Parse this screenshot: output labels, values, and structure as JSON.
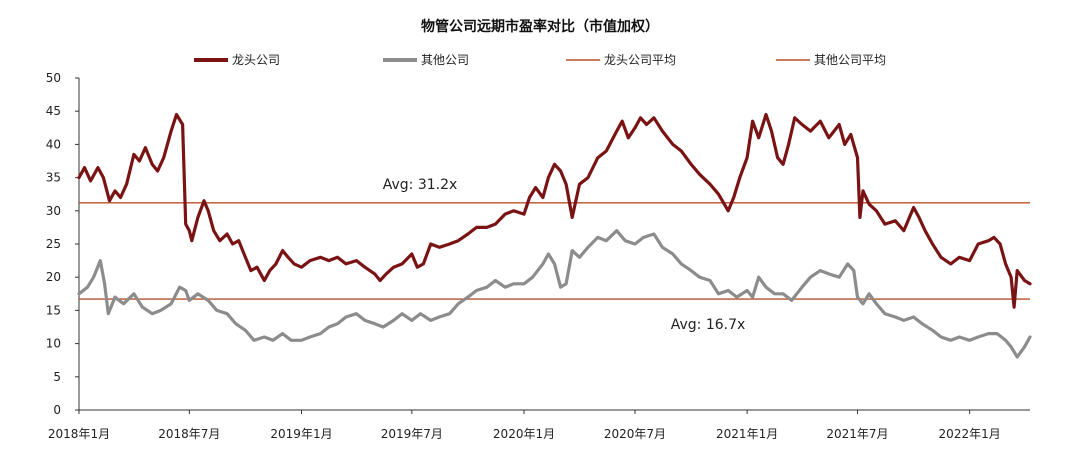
{
  "chart_data": {
    "type": "line",
    "title": "物管公司远期市盈率对比（市值加权）",
    "y_range": [
      0,
      50
    ],
    "y_ticks": [
      0,
      5,
      10,
      15,
      20,
      25,
      30,
      35,
      40,
      45,
      50
    ],
    "x_range": [
      "2018-01-01",
      "2022-04-10"
    ],
    "x_ticks": [
      {
        "date": "2018-01-01",
        "label": "2018年1月"
      },
      {
        "date": "2018-07-01",
        "label": "2018年7月"
      },
      {
        "date": "2019-01-01",
        "label": "2019年1月"
      },
      {
        "date": "2019-07-01",
        "label": "2019年7月"
      },
      {
        "date": "2020-01-01",
        "label": "2020年1月"
      },
      {
        "date": "2020-07-01",
        "label": "2020年7月"
      },
      {
        "date": "2021-01-01",
        "label": "2021年1月"
      },
      {
        "date": "2021-07-01",
        "label": "2021年7月"
      },
      {
        "date": "2022-01-01",
        "label": "2022年1月"
      }
    ],
    "grid": false,
    "legend_position": "top",
    "series": [
      {
        "name": "龙头公司",
        "color": "#7a1414",
        "points": [
          [
            "2018-01-01",
            35
          ],
          [
            "2018-01-10",
            36.5
          ],
          [
            "2018-01-20",
            34.5
          ],
          [
            "2018-02-01",
            36.5
          ],
          [
            "2018-02-10",
            35
          ],
          [
            "2018-02-20",
            31.5
          ],
          [
            "2018-03-01",
            33
          ],
          [
            "2018-03-10",
            32
          ],
          [
            "2018-03-20",
            34
          ],
          [
            "2018-04-01",
            38.5
          ],
          [
            "2018-04-10",
            37.5
          ],
          [
            "2018-04-20",
            39.5
          ],
          [
            "2018-05-01",
            37
          ],
          [
            "2018-05-10",
            36
          ],
          [
            "2018-05-20",
            38
          ],
          [
            "2018-06-01",
            42
          ],
          [
            "2018-06-10",
            44.5
          ],
          [
            "2018-06-20",
            43
          ],
          [
            "2018-06-25",
            28
          ],
          [
            "2018-07-01",
            27
          ],
          [
            "2018-07-05",
            25.5
          ],
          [
            "2018-07-15",
            29
          ],
          [
            "2018-07-25",
            31.5
          ],
          [
            "2018-08-01",
            30
          ],
          [
            "2018-08-10",
            27
          ],
          [
            "2018-08-20",
            25.5
          ],
          [
            "2018-09-01",
            26.5
          ],
          [
            "2018-09-10",
            25
          ],
          [
            "2018-09-20",
            25.5
          ],
          [
            "2018-10-01",
            23
          ],
          [
            "2018-10-10",
            21
          ],
          [
            "2018-10-20",
            21.5
          ],
          [
            "2018-11-01",
            19.5
          ],
          [
            "2018-11-10",
            21
          ],
          [
            "2018-11-20",
            22
          ],
          [
            "2018-12-01",
            24
          ],
          [
            "2018-12-10",
            23
          ],
          [
            "2018-12-20",
            22
          ],
          [
            "2019-01-01",
            21.5
          ],
          [
            "2019-01-15",
            22.5
          ],
          [
            "2019-02-01",
            23
          ],
          [
            "2019-02-15",
            22.5
          ],
          [
            "2019-03-01",
            23
          ],
          [
            "2019-03-15",
            22
          ],
          [
            "2019-04-01",
            22.5
          ],
          [
            "2019-04-15",
            21.5
          ],
          [
            "2019-05-01",
            20.5
          ],
          [
            "2019-05-10",
            19.5
          ],
          [
            "2019-05-20",
            20.5
          ],
          [
            "2019-06-01",
            21.5
          ],
          [
            "2019-06-15",
            22
          ],
          [
            "2019-07-01",
            23.5
          ],
          [
            "2019-07-10",
            21.5
          ],
          [
            "2019-07-20",
            22
          ],
          [
            "2019-08-01",
            25
          ],
          [
            "2019-08-15",
            24.5
          ],
          [
            "2019-09-01",
            25
          ],
          [
            "2019-09-15",
            25.5
          ],
          [
            "2019-10-01",
            26.5
          ],
          [
            "2019-10-15",
            27.5
          ],
          [
            "2019-11-01",
            27.5
          ],
          [
            "2019-11-15",
            28
          ],
          [
            "2019-12-01",
            29.5
          ],
          [
            "2019-12-15",
            30
          ],
          [
            "2020-01-01",
            29.5
          ],
          [
            "2020-01-10",
            32
          ],
          [
            "2020-01-20",
            33.5
          ],
          [
            "2020-02-01",
            32
          ],
          [
            "2020-02-10",
            35
          ],
          [
            "2020-02-20",
            37
          ],
          [
            "2020-03-01",
            36
          ],
          [
            "2020-03-10",
            34
          ],
          [
            "2020-03-20",
            29
          ],
          [
            "2020-04-01",
            34
          ],
          [
            "2020-04-15",
            35
          ],
          [
            "2020-05-01",
            38
          ],
          [
            "2020-05-15",
            39
          ],
          [
            "2020-06-01",
            42
          ],
          [
            "2020-06-10",
            43.5
          ],
          [
            "2020-06-20",
            41
          ],
          [
            "2020-07-01",
            42.5
          ],
          [
            "2020-07-10",
            44
          ],
          [
            "2020-07-20",
            43
          ],
          [
            "2020-08-01",
            44
          ],
          [
            "2020-08-15",
            42
          ],
          [
            "2020-09-01",
            40
          ],
          [
            "2020-09-15",
            39
          ],
          [
            "2020-10-01",
            37
          ],
          [
            "2020-10-15",
            35.5
          ],
          [
            "2020-11-01",
            34
          ],
          [
            "2020-11-15",
            32.5
          ],
          [
            "2020-12-01",
            30
          ],
          [
            "2020-12-10",
            32
          ],
          [
            "2020-12-20",
            35
          ],
          [
            "2021-01-01",
            38
          ],
          [
            "2021-01-10",
            43.5
          ],
          [
            "2021-01-20",
            41
          ],
          [
            "2021-02-01",
            44.5
          ],
          [
            "2021-02-10",
            42
          ],
          [
            "2021-02-20",
            38
          ],
          [
            "2021-03-01",
            37
          ],
          [
            "2021-03-10",
            40
          ],
          [
            "2021-03-20",
            44
          ],
          [
            "2021-04-01",
            43
          ],
          [
            "2021-04-15",
            42
          ],
          [
            "2021-05-01",
            43.5
          ],
          [
            "2021-05-15",
            41
          ],
          [
            "2021-06-01",
            43
          ],
          [
            "2021-06-10",
            40
          ],
          [
            "2021-06-20",
            41.5
          ],
          [
            "2021-07-01",
            38
          ],
          [
            "2021-07-05",
            29
          ],
          [
            "2021-07-10",
            33
          ],
          [
            "2021-07-20",
            31
          ],
          [
            "2021-08-01",
            30
          ],
          [
            "2021-08-15",
            28
          ],
          [
            "2021-09-01",
            28.5
          ],
          [
            "2021-09-15",
            27
          ],
          [
            "2021-10-01",
            30.5
          ],
          [
            "2021-10-10",
            29
          ],
          [
            "2021-10-20",
            27
          ],
          [
            "2021-11-01",
            25
          ],
          [
            "2021-11-15",
            23
          ],
          [
            "2021-12-01",
            22
          ],
          [
            "2021-12-15",
            23
          ],
          [
            "2022-01-01",
            22.5
          ],
          [
            "2022-01-15",
            25
          ],
          [
            "2022-02-01",
            25.5
          ],
          [
            "2022-02-10",
            26
          ],
          [
            "2022-02-20",
            25
          ],
          [
            "2022-03-01",
            22
          ],
          [
            "2022-03-10",
            20
          ],
          [
            "2022-03-15",
            15.5
          ],
          [
            "2022-03-20",
            21
          ],
          [
            "2022-04-01",
            19.5
          ],
          [
            "2022-04-10",
            19
          ]
        ]
      },
      {
        "name": "其他公司",
        "color": "#8c8c8c",
        "points": [
          [
            "2018-01-01",
            17.5
          ],
          [
            "2018-01-15",
            18.5
          ],
          [
            "2018-01-25",
            20
          ],
          [
            "2018-02-05",
            22.5
          ],
          [
            "2018-02-12",
            19
          ],
          [
            "2018-02-18",
            14.5
          ],
          [
            "2018-03-01",
            17
          ],
          [
            "2018-03-15",
            16
          ],
          [
            "2018-04-01",
            17.5
          ],
          [
            "2018-04-15",
            15.5
          ],
          [
            "2018-05-01",
            14.5
          ],
          [
            "2018-05-15",
            15
          ],
          [
            "2018-06-01",
            16
          ],
          [
            "2018-06-15",
            18.5
          ],
          [
            "2018-06-25",
            18
          ],
          [
            "2018-07-01",
            16.5
          ],
          [
            "2018-07-15",
            17.5
          ],
          [
            "2018-08-01",
            16.5
          ],
          [
            "2018-08-15",
            15
          ],
          [
            "2018-09-01",
            14.5
          ],
          [
            "2018-09-15",
            13
          ],
          [
            "2018-10-01",
            12
          ],
          [
            "2018-10-15",
            10.5
          ],
          [
            "2018-11-01",
            11
          ],
          [
            "2018-11-15",
            10.5
          ],
          [
            "2018-12-01",
            11.5
          ],
          [
            "2018-12-15",
            10.5
          ],
          [
            "2019-01-01",
            10.5
          ],
          [
            "2019-01-15",
            11
          ],
          [
            "2019-02-01",
            11.5
          ],
          [
            "2019-02-15",
            12.5
          ],
          [
            "2019-03-01",
            13
          ],
          [
            "2019-03-15",
            14
          ],
          [
            "2019-04-01",
            14.5
          ],
          [
            "2019-04-15",
            13.5
          ],
          [
            "2019-05-01",
            13
          ],
          [
            "2019-05-15",
            12.5
          ],
          [
            "2019-06-01",
            13.5
          ],
          [
            "2019-06-15",
            14.5
          ],
          [
            "2019-07-01",
            13.5
          ],
          [
            "2019-07-15",
            14.5
          ],
          [
            "2019-08-01",
            13.5
          ],
          [
            "2019-08-15",
            14
          ],
          [
            "2019-09-01",
            14.5
          ],
          [
            "2019-09-15",
            16
          ],
          [
            "2019-10-01",
            17
          ],
          [
            "2019-10-15",
            18
          ],
          [
            "2019-11-01",
            18.5
          ],
          [
            "2019-11-15",
            19.5
          ],
          [
            "2019-12-01",
            18.5
          ],
          [
            "2019-12-15",
            19
          ],
          [
            "2020-01-01",
            19
          ],
          [
            "2020-01-15",
            20
          ],
          [
            "2020-02-01",
            22
          ],
          [
            "2020-02-10",
            23.5
          ],
          [
            "2020-02-20",
            22
          ],
          [
            "2020-03-01",
            18.5
          ],
          [
            "2020-03-10",
            19
          ],
          [
            "2020-03-20",
            24
          ],
          [
            "2020-04-01",
            23
          ],
          [
            "2020-04-15",
            24.5
          ],
          [
            "2020-05-01",
            26
          ],
          [
            "2020-05-15",
            25.5
          ],
          [
            "2020-06-01",
            27
          ],
          [
            "2020-06-15",
            25.5
          ],
          [
            "2020-07-01",
            25
          ],
          [
            "2020-07-15",
            26
          ],
          [
            "2020-08-01",
            26.5
          ],
          [
            "2020-08-15",
            24.5
          ],
          [
            "2020-09-01",
            23.5
          ],
          [
            "2020-09-15",
            22
          ],
          [
            "2020-10-01",
            21
          ],
          [
            "2020-10-15",
            20
          ],
          [
            "2020-11-01",
            19.5
          ],
          [
            "2020-11-15",
            17.5
          ],
          [
            "2020-12-01",
            18
          ],
          [
            "2020-12-15",
            17
          ],
          [
            "2021-01-01",
            18
          ],
          [
            "2021-01-10",
            17
          ],
          [
            "2021-01-20",
            20
          ],
          [
            "2021-02-01",
            18.5
          ],
          [
            "2021-02-15",
            17.5
          ],
          [
            "2021-03-01",
            17.5
          ],
          [
            "2021-03-15",
            16.5
          ],
          [
            "2021-04-01",
            18.5
          ],
          [
            "2021-04-15",
            20
          ],
          [
            "2021-05-01",
            21
          ],
          [
            "2021-05-15",
            20.5
          ],
          [
            "2021-06-01",
            20
          ],
          [
            "2021-06-15",
            22
          ],
          [
            "2021-06-25",
            21
          ],
          [
            "2021-07-01",
            17
          ],
          [
            "2021-07-10",
            16
          ],
          [
            "2021-07-20",
            17.5
          ],
          [
            "2021-08-01",
            16
          ],
          [
            "2021-08-15",
            14.5
          ],
          [
            "2021-09-01",
            14
          ],
          [
            "2021-09-15",
            13.5
          ],
          [
            "2021-10-01",
            14
          ],
          [
            "2021-10-15",
            13
          ],
          [
            "2021-11-01",
            12
          ],
          [
            "2021-11-15",
            11
          ],
          [
            "2021-12-01",
            10.5
          ],
          [
            "2021-12-15",
            11
          ],
          [
            "2022-01-01",
            10.5
          ],
          [
            "2022-01-15",
            11
          ],
          [
            "2022-02-01",
            11.5
          ],
          [
            "2022-02-15",
            11.5
          ],
          [
            "2022-03-01",
            10.5
          ],
          [
            "2022-03-10",
            9.5
          ],
          [
            "2022-03-20",
            8
          ],
          [
            "2022-04-01",
            9.5
          ],
          [
            "2022-04-10",
            11
          ]
        ]
      }
    ],
    "reference_lines": [
      {
        "name": "龙头公司平均",
        "value": 31.2,
        "label": "Avg: 31.2x",
        "color": "#b8502a"
      },
      {
        "name": "其他公司平均",
        "value": 16.7,
        "label": "Avg: 16.7x",
        "color": "#b8502a"
      }
    ]
  }
}
